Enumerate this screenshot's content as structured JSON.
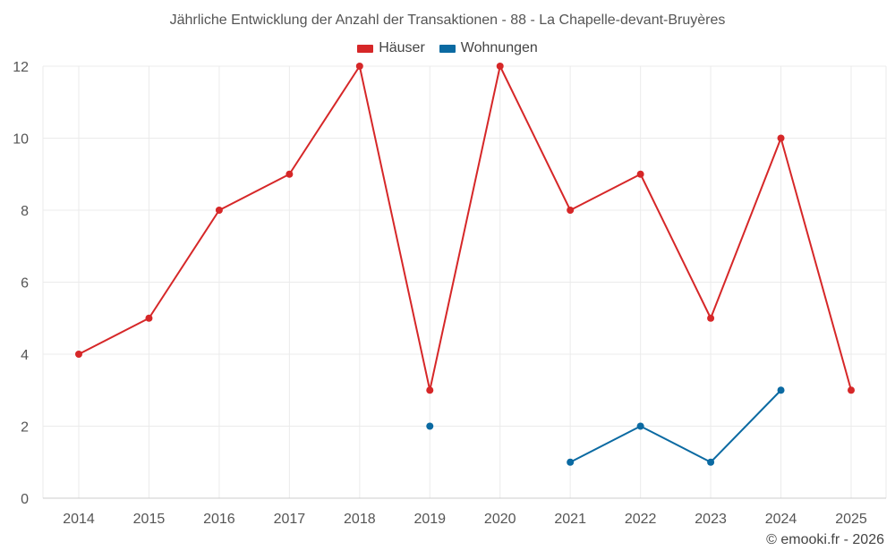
{
  "chart_data": {
    "type": "line",
    "title": "Jährliche Entwicklung der Anzahl der Transaktionen - 88 - La Chapelle-devant-Bruyères",
    "categories": [
      "2014",
      "2015",
      "2016",
      "2017",
      "2018",
      "2019",
      "2020",
      "2021",
      "2022",
      "2023",
      "2024",
      "2025"
    ],
    "ylim": [
      0,
      12
    ],
    "yticks": [
      0,
      2,
      4,
      6,
      8,
      10,
      12
    ],
    "grid": true,
    "legend_position": "top-center",
    "series": [
      {
        "name": "Häuser",
        "color": "#d62728",
        "values": [
          4,
          5,
          8,
          9,
          12,
          3,
          12,
          8,
          9,
          5,
          10,
          3
        ]
      },
      {
        "name": "Wohnungen",
        "color": "#0b6aa2",
        "values": [
          null,
          null,
          null,
          null,
          null,
          2,
          null,
          1,
          2,
          1,
          3,
          null
        ]
      }
    ]
  },
  "credit": "© emooki.fr - 2026"
}
